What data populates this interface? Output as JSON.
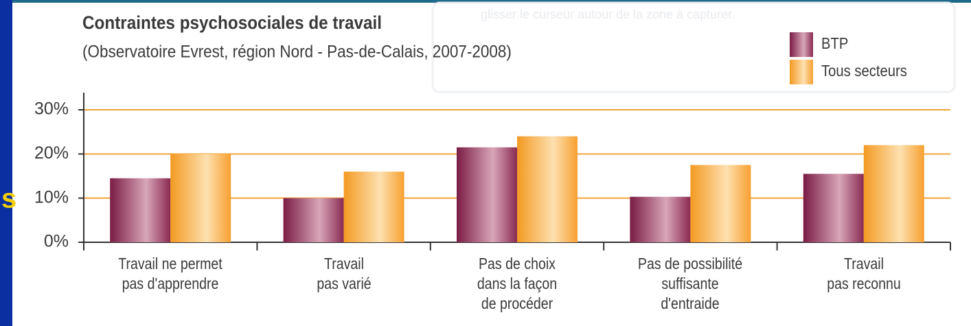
{
  "chart_data": {
    "type": "bar",
    "title": "Contraintes psychosociales de travail",
    "subtitle": "(Observatoire Evrest, région Nord - Pas-de-Calais, 2007-2008)",
    "overlay_text": "glisser le curseur autour de la zone à capturer.",
    "side_text": "s",
    "categories": [
      "Travail ne permet\npas d'apprendre",
      "Travail\npas varié",
      "Pas de choix\ndans la façon\nde procéder",
      "Pas de possibilité\nsuffisante\nd'entraide",
      "Travail\npas reconnu"
    ],
    "series": [
      {
        "name": "BTP",
        "color": "#8a2a52",
        "values": [
          14.5,
          10,
          21.5,
          10.3,
          15.5
        ]
      },
      {
        "name": "Tous secteurs",
        "color": "#f7a030",
        "values": [
          20,
          16,
          24,
          17.5,
          22
        ]
      }
    ],
    "ylim": [
      0,
      30
    ],
    "yticks": [
      {
        "value": 0,
        "label": "0%"
      },
      {
        "value": 10,
        "label": "10%"
      },
      {
        "value": 20,
        "label": "20%"
      },
      {
        "value": 30,
        "label": "30%"
      }
    ],
    "grid": true,
    "legend": "top-right"
  }
}
